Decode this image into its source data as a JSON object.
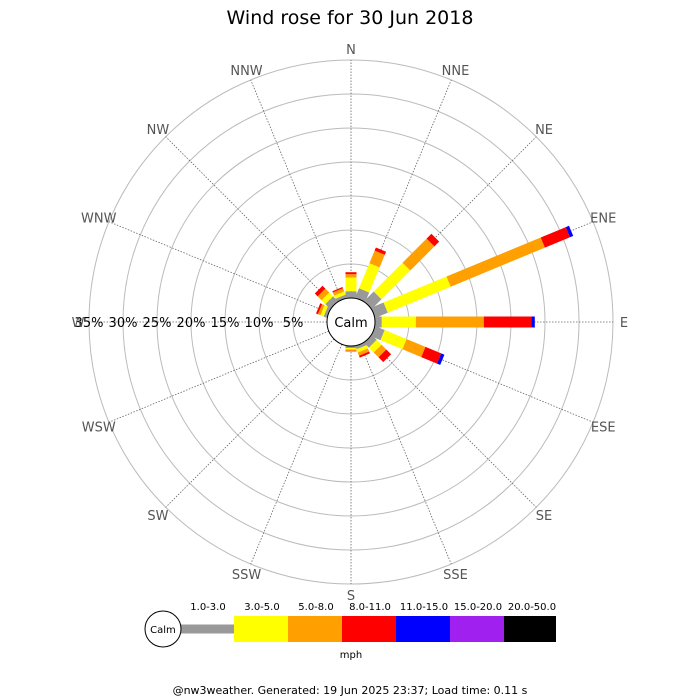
{
  "chart_data": {
    "type": "windrose",
    "title": "Wind rose for 30 Jun 2018",
    "directions": [
      "N",
      "NNE",
      "NE",
      "ENE",
      "E",
      "ESE",
      "SE",
      "SSE",
      "S",
      "SSW",
      "SW",
      "WSW",
      "W",
      "WNW",
      "NW",
      "NNW"
    ],
    "radial_ticks": [
      "5%",
      "10%",
      "15%",
      "20%",
      "25%",
      "30%",
      "35%"
    ],
    "radial_max": 35,
    "calm_label": "Calm",
    "speed_unit": "mph",
    "bins": [
      {
        "label": "1.0-3.0",
        "color": "#999999"
      },
      {
        "label": "3.0-5.0",
        "color": "#ffff00"
      },
      {
        "label": "5.0-8.0",
        "color": "#ffa000"
      },
      {
        "label": "8.0-11.0",
        "color": "#ff0000"
      },
      {
        "label": "11.0-15.0",
        "color": "#0000ff"
      },
      {
        "label": "15.0-20.0",
        "color": "#a020f0"
      },
      {
        "label": "20.0-50.0",
        "color": "#000000"
      }
    ],
    "series": [
      {
        "direction": "N",
        "values": [
          1.0,
          2.0,
          0.5,
          0.3,
          0,
          0,
          0
        ]
      },
      {
        "direction": "NNE",
        "values": [
          1.5,
          4.0,
          2.0,
          0.5,
          0,
          0,
          0
        ]
      },
      {
        "direction": "NE",
        "values": [
          2.0,
          6.0,
          5.0,
          1.0,
          0,
          0,
          0
        ]
      },
      {
        "direction": "ENE",
        "values": [
          2.0,
          10.0,
          15.0,
          4.0,
          0.5,
          0,
          0
        ]
      },
      {
        "direction": "E",
        "values": [
          1.0,
          5.0,
          10.0,
          7.0,
          0.5,
          0,
          0
        ]
      },
      {
        "direction": "ESE",
        "values": [
          1.5,
          3.5,
          3.0,
          2.5,
          0.5,
          0,
          0
        ]
      },
      {
        "direction": "SE",
        "values": [
          1.0,
          1.0,
          1.0,
          1.0,
          0,
          0,
          0
        ]
      },
      {
        "direction": "SSE",
        "values": [
          0.5,
          0.5,
          0.5,
          0.3,
          0,
          0,
          0
        ]
      },
      {
        "direction": "S",
        "values": [
          0.3,
          0.2,
          0.2,
          0.1,
          0,
          0,
          0
        ]
      },
      {
        "direction": "SSW",
        "values": [
          0,
          0,
          0,
          0,
          0,
          0,
          0
        ]
      },
      {
        "direction": "SW",
        "values": [
          0,
          0,
          0,
          0,
          0,
          0,
          0
        ]
      },
      {
        "direction": "WSW",
        "values": [
          0,
          0,
          0,
          0,
          0,
          0,
          0
        ]
      },
      {
        "direction": "W",
        "values": [
          0,
          0,
          0,
          0,
          0,
          0,
          0
        ]
      },
      {
        "direction": "WNW",
        "values": [
          0.5,
          0.5,
          0.4,
          0.3,
          0,
          0,
          0
        ]
      },
      {
        "direction": "NW",
        "values": [
          1.0,
          0.8,
          0.8,
          0.6,
          0,
          0,
          0
        ]
      },
      {
        "direction": "NNW",
        "values": [
          0.5,
          0.5,
          0.5,
          0.2,
          0,
          0,
          0
        ]
      }
    ]
  },
  "footer": "@nw3weather. Generated: 19 Jun 2025 23:37; Load time: 0.11 s"
}
